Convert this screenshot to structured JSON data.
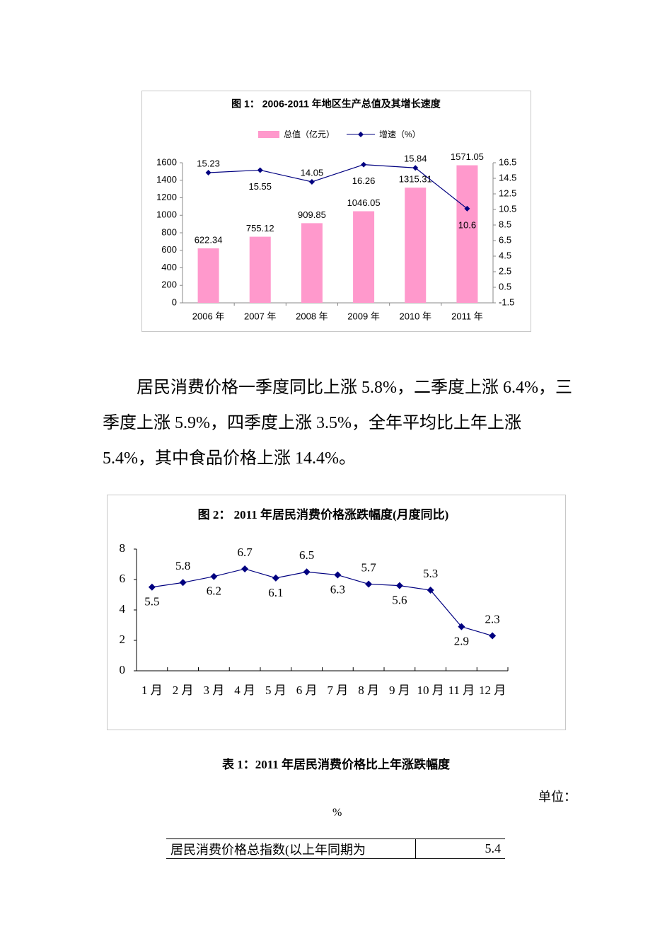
{
  "chart_data": [
    {
      "type": "combo",
      "title": "图 1：    2006-2011 年地区生产总值及其增长速度",
      "categories": [
        "2006 年",
        "2007 年",
        "2008 年",
        "2009 年",
        "2010 年",
        "2011 年"
      ],
      "series": [
        {
          "name": "总值（亿元）",
          "type": "bar",
          "color": "#ff99cc",
          "values": [
            622.34,
            755.12,
            909.85,
            1046.05,
            1315.31,
            1571.05
          ]
        },
        {
          "name": "增速（%）",
          "type": "line",
          "axis": "y2",
          "color": "#000080",
          "values": [
            15.23,
            15.55,
            14.05,
            16.26,
            15.84,
            10.6
          ]
        }
      ],
      "ylim": [
        0,
        1600
      ],
      "yticks": [
        0,
        200,
        400,
        600,
        800,
        1000,
        1200,
        1400,
        1600
      ],
      "y2lim": [
        -1.5,
        16.5
      ],
      "y2ticks": [
        -1.5,
        0.5,
        2.5,
        4.5,
        6.5,
        8.5,
        10.5,
        12.5,
        14.5,
        16.5
      ],
      "legend": "top"
    },
    {
      "type": "line",
      "title": "图 2：    2011 年居民消费价格涨跌幅度(月度同比)",
      "categories": [
        "1 月",
        "2 月",
        "3 月",
        "4 月",
        "5 月",
        "6 月",
        "7 月",
        "8 月",
        "9 月",
        "10 月",
        "11 月",
        "12 月"
      ],
      "values": [
        5.5,
        5.8,
        6.2,
        6.7,
        6.1,
        6.5,
        6.3,
        5.7,
        5.6,
        5.3,
        2.9,
        2.3
      ],
      "color": "#000080",
      "ylim": [
        0,
        8
      ],
      "yticks": [
        0,
        2,
        4,
        6,
        8
      ]
    }
  ],
  "paragraph": "居民消费价格一季度同比上涨 5.8%，二季度上涨 6.4%，三季度上涨 5.9%，四季度上涨 3.5%，全年平均比上年上涨 5.4%，其中食品价格上涨 14.4%。",
  "table": {
    "caption": "表 1：2011 年居民消费价格比上年涨跌幅度",
    "unit_label": "单位：",
    "unit": "%",
    "rows": [
      [
        "居民消费价格总指数(以上年同期为",
        5.4
      ]
    ]
  }
}
